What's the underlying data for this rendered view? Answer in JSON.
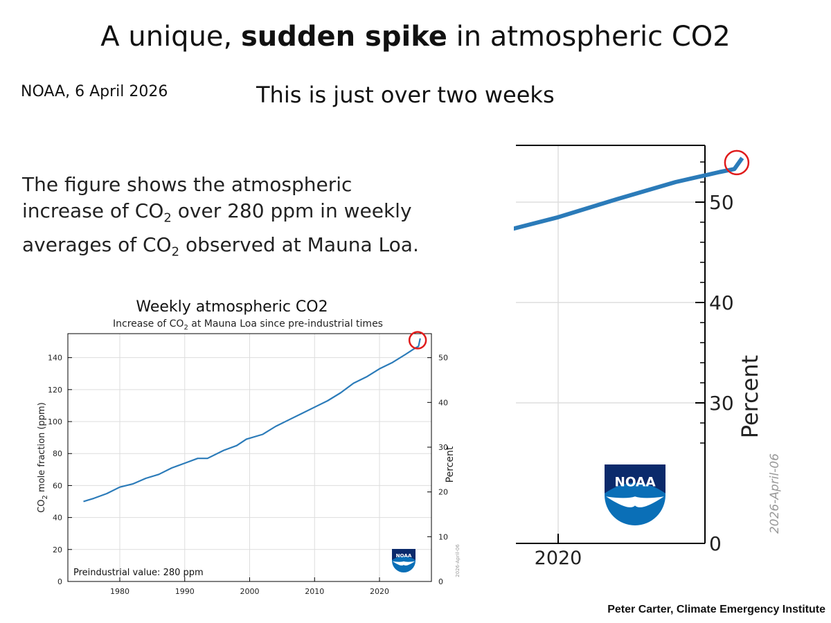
{
  "slide": {
    "title_pre": "A unique",
    "title_bold": "sudden spike",
    "title_post": " in atmospheric CO2",
    "title_comma": ",",
    "source": "NOAA, 6 April 2026",
    "subtitle": "This is just over  two weeks",
    "desc_part1": "The figure shows the atmospheric increase of CO",
    "desc_sub1": "2",
    "desc_part2": " over 280 ppm in weekly averages of CO",
    "desc_sub2": "2",
    "desc_part3": " observed at Mauna Loa.",
    "credit": "Peter Carter, Climate Emergency Institute"
  },
  "colors": {
    "line": "#2b7bb9",
    "highlight": "#e01b1b",
    "grid": "#dddddd",
    "noaa_blue": "#0a6fb7"
  },
  "chart_data": [
    {
      "type": "line",
      "title": "Weekly atmospheric CO2",
      "subtitle_pre": "Increase of CO",
      "subtitle_sub": "2",
      "subtitle_post": " at Mauna Loa since pre-industrial times",
      "ylabel_pre": "CO",
      "ylabel_sub": "2",
      "ylabel_post": " mole fraction (ppm)",
      "y2label": "Percent",
      "annotation": "Preindustrial value: 280 ppm",
      "date_stamp": "2026-April-06",
      "logo": "noaa-logo",
      "xlim": [
        1972,
        2028
      ],
      "ylim": [
        0,
        155
      ],
      "y2lim": [
        0,
        55.36
      ],
      "xticks": [
        1980,
        1990,
        2000,
        2010,
        2020
      ],
      "yticks": [
        0,
        20,
        40,
        60,
        80,
        100,
        120,
        140
      ],
      "y2ticks": [
        0,
        10,
        20,
        30,
        40,
        50
      ],
      "grid": true,
      "series": [
        {
          "x": [
            1974.4,
            1976,
            1978,
            1980,
            1982,
            1984,
            1986,
            1988,
            1990,
            1992,
            1993.5,
            1996,
            1998,
            1999.5,
            2002,
            2004,
            2006,
            2008,
            2010,
            2012,
            2014,
            2016,
            2018,
            2020,
            2022,
            2024,
            2025.5,
            2026.0,
            2026.27
          ],
          "y": [
            50,
            52,
            55,
            59,
            61,
            64.5,
            67,
            71,
            74,
            77,
            77,
            82,
            85,
            89,
            92,
            97,
            101,
            105,
            109,
            113,
            118,
            124,
            128,
            133,
            137,
            142,
            146,
            147,
            152
          ]
        }
      ],
      "highlight": {
        "x": 2026.2,
        "y": 150
      }
    },
    {
      "type": "line",
      "y2label": "Percent",
      "date_stamp": "2026-April-06",
      "logo": "noaa-logo",
      "xlim": [
        2016.7,
        2030
      ],
      "y2lim": [
        0,
        55.36
      ],
      "y2range_shown": [
        24,
        55.36
      ],
      "xticks": [
        2020
      ],
      "y2ticks": [
        0,
        30,
        40,
        50
      ],
      "grid": true,
      "series": [
        {
          "x": [
            2016.7,
            2018,
            2020,
            2022,
            2024,
            2025.5,
            2026.0,
            2026.27
          ],
          "y": [
            46,
            47,
            48.5,
            50.3,
            52.0,
            53.0,
            53.3,
            54.4
          ]
        }
      ],
      "highlight": {
        "x": 2026.2,
        "y": 53.8
      }
    }
  ]
}
